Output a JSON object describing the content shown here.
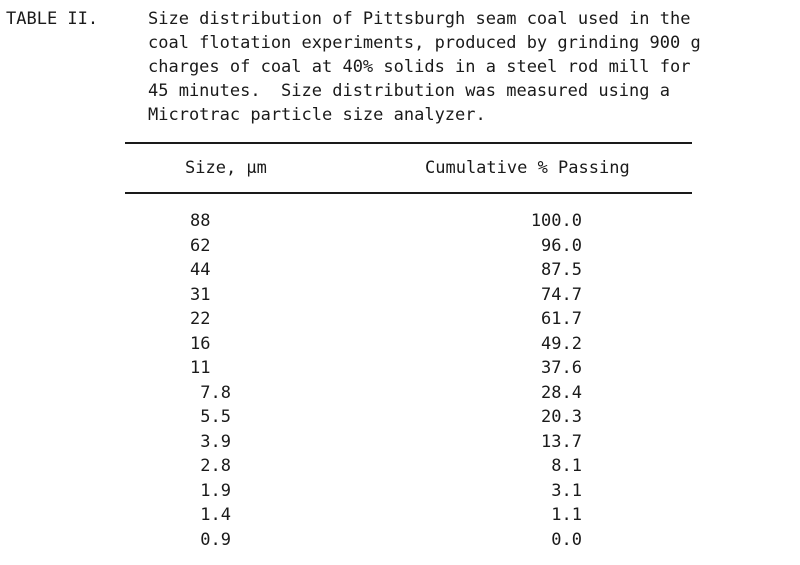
{
  "table": {
    "label": "TABLE II.",
    "caption_lines": [
      "Size distribution of Pittsburgh seam coal used in the",
      "coal flotation experiments, produced by grinding 900 g",
      "charges of coal at 40% solids in a steel rod mill for",
      "45 minutes.  Size distribution was measured using a",
      "Microtrac particle size analyzer."
    ],
    "headers": [
      "Size, μm",
      "Cumulative % Passing"
    ],
    "rows": [
      [
        "88",
        "100.0"
      ],
      [
        "62",
        "96.0"
      ],
      [
        "44",
        "87.5"
      ],
      [
        "31",
        "74.7"
      ],
      [
        "22",
        "61.7"
      ],
      [
        "16",
        "49.2"
      ],
      [
        "11",
        "37.6"
      ],
      [
        " 7.8",
        "28.4"
      ],
      [
        " 5.5",
        "20.3"
      ],
      [
        " 3.9",
        "13.7"
      ],
      [
        " 2.8",
        "8.1"
      ],
      [
        " 1.9",
        "3.1"
      ],
      [
        " 1.4",
        "1.1"
      ],
      [
        " 0.9",
        "0.0"
      ]
    ]
  }
}
